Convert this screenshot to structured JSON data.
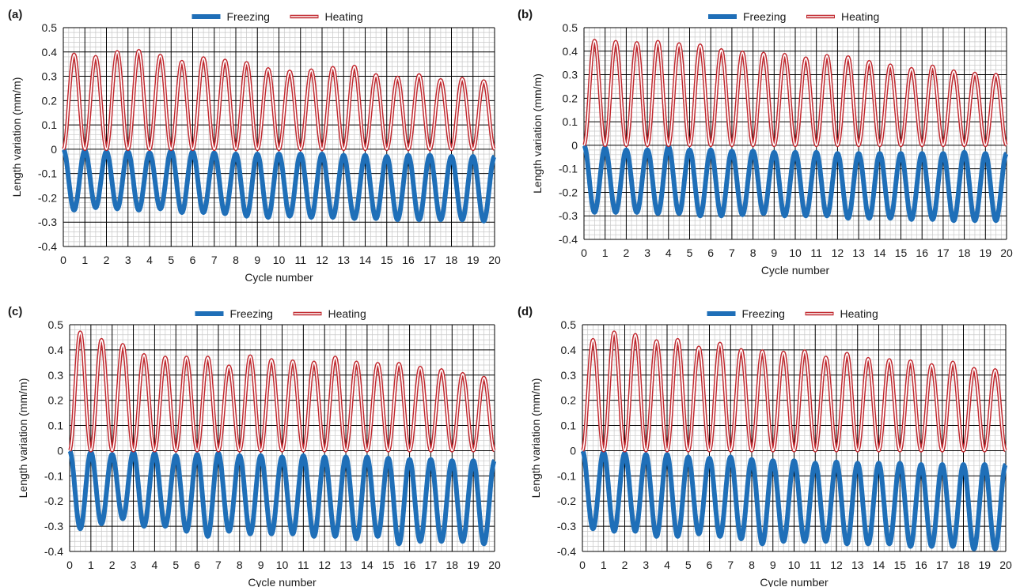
{
  "legend": {
    "freezing": "Freezing",
    "heating": "Heating"
  },
  "colors": {
    "freezing": "#1f6fb8",
    "heating": "#c0272d",
    "minor_grid": "#c8c8c8",
    "major_grid": "#000000"
  },
  "chart_data": [
    {
      "type": "line",
      "panel_label": "(a)",
      "xlabel": "Cycle number",
      "ylabel": "Length variation (mm/m)",
      "xlim": [
        0,
        20
      ],
      "ylim": [
        -0.4,
        0.5
      ],
      "x_ticks": [
        "0",
        "1",
        "2",
        "3",
        "4",
        "5",
        "6",
        "7",
        "8",
        "9",
        "10",
        "11",
        "12",
        "13",
        "14",
        "15",
        "16",
        "17",
        "18",
        "19",
        "20"
      ],
      "y_ticks": [
        "0.5",
        "0.4",
        "0.3",
        "0.2",
        "0.1",
        "0",
        "-0.1",
        "-0.2",
        "-0.3",
        "-0.4"
      ],
      "legend_position": "top-center",
      "grid": true,
      "series": [
        {
          "name": "Freezing",
          "cycle_minima": [
            -0.25,
            -0.24,
            -0.245,
            -0.25,
            -0.245,
            -0.26,
            -0.26,
            -0.265,
            -0.275,
            -0.28,
            -0.275,
            -0.28,
            -0.28,
            -0.285,
            -0.285,
            -0.29,
            -0.29,
            -0.29,
            -0.29,
            -0.295
          ],
          "cycle_maxima": [
            0,
            -0.005,
            -0.01,
            -0.01,
            -0.015,
            -0.005,
            -0.01,
            -0.015,
            -0.02,
            -0.02,
            -0.02,
            -0.02,
            -0.02,
            -0.025,
            -0.025,
            -0.03,
            -0.025,
            -0.025,
            -0.03,
            -0.03
          ]
        },
        {
          "name": "Heating",
          "cycle_peaks": [
            0.39,
            0.38,
            0.4,
            0.405,
            0.385,
            0.36,
            0.375,
            0.365,
            0.355,
            0.33,
            0.32,
            0.325,
            0.335,
            0.34,
            0.305,
            0.295,
            0.305,
            0.285,
            0.29,
            0.28
          ]
        }
      ]
    },
    {
      "type": "line",
      "panel_label": "(b)",
      "xlabel": "Cycle number",
      "ylabel": "Length variation (mm/m)",
      "xlim": [
        0,
        20
      ],
      "ylim": [
        -0.4,
        0.5
      ],
      "x_ticks": [
        "0",
        "1",
        "2",
        "3",
        "4",
        "5",
        "6",
        "7",
        "8",
        "9",
        "10",
        "11",
        "12",
        "13",
        "14",
        "15",
        "16",
        "17",
        "18",
        "19",
        "20"
      ],
      "y_ticks": [
        "0.5",
        "0.4",
        "0.3",
        "0.2",
        "0.1",
        "0",
        "-0.1",
        "-0.2",
        "-0.3",
        "-0.4"
      ],
      "legend_position": "top-center",
      "grid": true,
      "series": [
        {
          "name": "Freezing",
          "cycle_minima": [
            -0.285,
            -0.285,
            -0.285,
            -0.29,
            -0.29,
            -0.3,
            -0.3,
            -0.295,
            -0.29,
            -0.3,
            -0.3,
            -0.3,
            -0.31,
            -0.31,
            -0.31,
            -0.315,
            -0.315,
            -0.32,
            -0.32,
            -0.32
          ],
          "cycle_maxima": [
            0,
            -0.01,
            -0.02,
            -0.02,
            -0.005,
            -0.02,
            -0.02,
            -0.025,
            -0.025,
            -0.03,
            -0.03,
            -0.03,
            -0.035,
            -0.035,
            -0.035,
            -0.035,
            -0.035,
            -0.035,
            -0.03,
            -0.035
          ]
        },
        {
          "name": "Heating",
          "cycle_peaks": [
            0.445,
            0.44,
            0.435,
            0.44,
            0.43,
            0.425,
            0.405,
            0.395,
            0.39,
            0.385,
            0.37,
            0.38,
            0.375,
            0.355,
            0.34,
            0.325,
            0.335,
            0.315,
            0.305,
            0.3
          ]
        }
      ]
    },
    {
      "type": "line",
      "panel_label": "(c)",
      "xlabel": "Cycle number",
      "ylabel": "Length variation (mm/m)",
      "xlim": [
        0,
        20
      ],
      "ylim": [
        -0.4,
        0.5
      ],
      "x_ticks": [
        "0",
        "1",
        "2",
        "3",
        "4",
        "5",
        "6",
        "7",
        "8",
        "9",
        "10",
        "11",
        "12",
        "13",
        "14",
        "15",
        "16",
        "17",
        "18",
        "19",
        "20"
      ],
      "y_ticks": [
        "0.5",
        "0.4",
        "0.3",
        "0.2",
        "0.1",
        "0",
        "-0.1",
        "-0.2",
        "-0.3",
        "-0.4"
      ],
      "legend_position": "top-center",
      "grid": true,
      "series": [
        {
          "name": "Freezing",
          "cycle_minima": [
            -0.31,
            -0.29,
            -0.27,
            -0.3,
            -0.3,
            -0.32,
            -0.34,
            -0.32,
            -0.33,
            -0.33,
            -0.33,
            -0.34,
            -0.34,
            -0.35,
            -0.34,
            -0.37,
            -0.36,
            -0.36,
            -0.36,
            -0.37
          ],
          "cycle_maxima": [
            0,
            -0.005,
            -0.015,
            -0.005,
            -0.01,
            -0.02,
            -0.015,
            -0.01,
            -0.02,
            -0.02,
            -0.025,
            -0.02,
            -0.025,
            -0.025,
            -0.025,
            -0.03,
            -0.035,
            -0.035,
            -0.04,
            -0.04
          ]
        },
        {
          "name": "Heating",
          "cycle_peaks": [
            0.47,
            0.44,
            0.42,
            0.38,
            0.37,
            0.37,
            0.37,
            0.335,
            0.375,
            0.36,
            0.355,
            0.35,
            0.37,
            0.35,
            0.345,
            0.345,
            0.33,
            0.32,
            0.305,
            0.29
          ]
        }
      ]
    },
    {
      "type": "line",
      "panel_label": "(d)",
      "xlabel": "Cycle number",
      "ylabel": "Length variation (mm/m)",
      "xlim": [
        0,
        20
      ],
      "ylim": [
        -0.4,
        0.5
      ],
      "x_ticks": [
        "0",
        "1",
        "2",
        "3",
        "4",
        "5",
        "6",
        "7",
        "8",
        "9",
        "10",
        "11",
        "12",
        "13",
        "14",
        "15",
        "16",
        "17",
        "18",
        "19",
        "20"
      ],
      "y_ticks": [
        "0.5",
        "0.4",
        "0.3",
        "0.2",
        "0.1",
        "0",
        "-0.1",
        "-0.2",
        "-0.3",
        "-0.4"
      ],
      "legend_position": "top-center",
      "grid": true,
      "series": [
        {
          "name": "Freezing",
          "cycle_minima": [
            -0.31,
            -0.32,
            -0.32,
            -0.34,
            -0.34,
            -0.33,
            -0.34,
            -0.35,
            -0.37,
            -0.36,
            -0.36,
            -0.36,
            -0.37,
            -0.37,
            -0.37,
            -0.38,
            -0.38,
            -0.38,
            -0.39,
            -0.39
          ],
          "cycle_maxima": [
            0,
            -0.005,
            -0.01,
            -0.015,
            -0.015,
            -0.025,
            -0.03,
            -0.025,
            -0.035,
            -0.04,
            -0.04,
            -0.05,
            -0.045,
            -0.05,
            -0.05,
            -0.05,
            -0.055,
            -0.055,
            -0.055,
            -0.055
          ]
        },
        {
          "name": "Heating",
          "cycle_peaks": [
            0.44,
            0.47,
            0.46,
            0.435,
            0.44,
            0.41,
            0.425,
            0.4,
            0.395,
            0.39,
            0.395,
            0.37,
            0.385,
            0.365,
            0.36,
            0.355,
            0.34,
            0.35,
            0.325,
            0.32
          ]
        }
      ]
    }
  ]
}
